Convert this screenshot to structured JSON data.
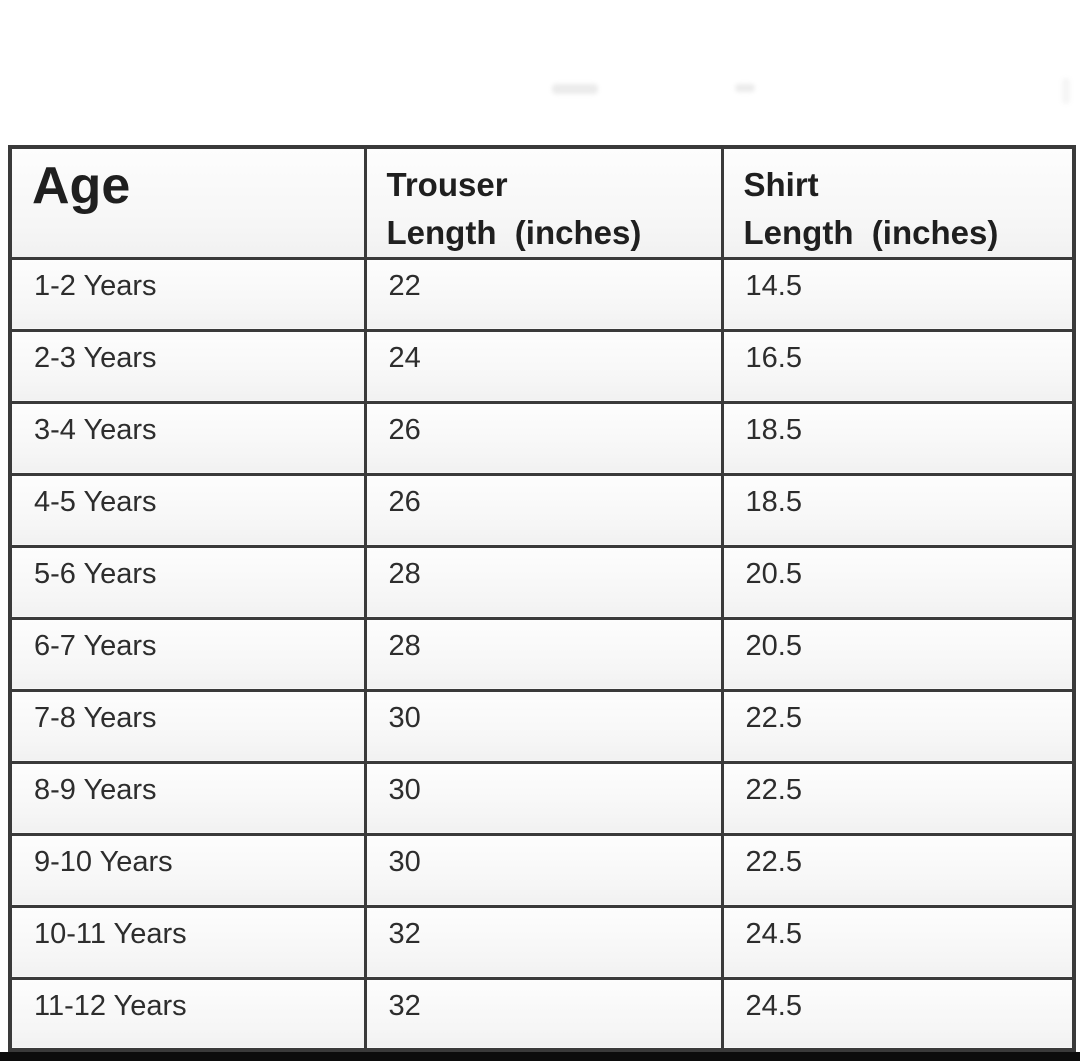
{
  "colors": {
    "border": "#3a3a3a",
    "text": "#2d2d2d",
    "bottom_bar": "#0c0c0c"
  },
  "table": {
    "header": {
      "age": "Age",
      "trouser_line1": "Trouser",
      "trouser_line2": "Length  (inches)",
      "shirt_line1": "Shirt",
      "shirt_line2": "Length  (inches)"
    },
    "rows": [
      {
        "age": "1-2 Years",
        "trouser": "22",
        "shirt": "14.5"
      },
      {
        "age": "2-3 Years",
        "trouser": "24",
        "shirt": "16.5"
      },
      {
        "age": "3-4 Years",
        "trouser": "26",
        "shirt": "18.5"
      },
      {
        "age": "4-5 Years",
        "trouser": "26",
        "shirt": "18.5"
      },
      {
        "age": "5-6 Years",
        "trouser": "28",
        "shirt": "20.5"
      },
      {
        "age": "6-7 Years",
        "trouser": "28",
        "shirt": "20.5"
      },
      {
        "age": "7-8 Years",
        "trouser": "30",
        "shirt": "22.5"
      },
      {
        "age": "8-9 Years",
        "trouser": "30",
        "shirt": "22.5"
      },
      {
        "age": "9-10 Years",
        "trouser": "30",
        "shirt": "22.5"
      },
      {
        "age": "10-11 Years",
        "trouser": "32",
        "shirt": "24.5"
      },
      {
        "age": "11-12 Years",
        "trouser": "32",
        "shirt": "24.5"
      }
    ]
  }
}
